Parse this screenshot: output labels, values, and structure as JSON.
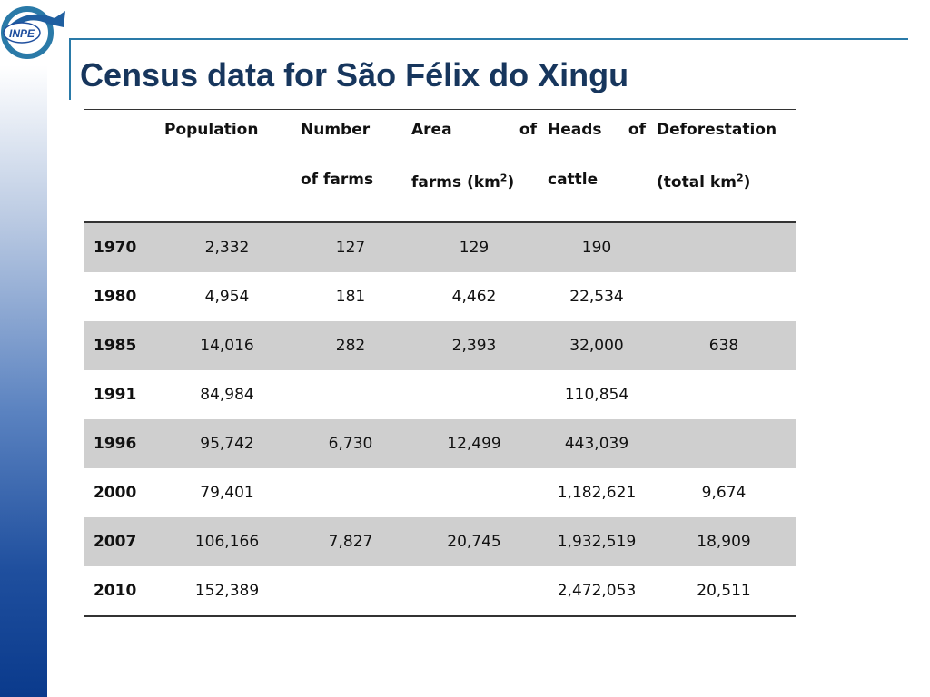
{
  "title": "Census data for São Félix do Xingu",
  "logo": {
    "text": "INPE"
  },
  "table": {
    "headers": {
      "population": "Population",
      "farms_1": "Number",
      "farms_2": "of farms",
      "area_1a": "Area",
      "area_1b": "of",
      "area_2": "farms (km",
      "area_sup": "2",
      "area_close": ")",
      "cattle_1a": "Heads",
      "cattle_1b": "of",
      "cattle_2": "cattle",
      "defor_1": "Deforestation",
      "defor_2": "(total km",
      "defor_sup": "2",
      "defor_close": ")"
    },
    "rows": [
      {
        "year": "1970",
        "population": "2,332",
        "farms": "127",
        "area": "129",
        "cattle": "190",
        "deforestation": ""
      },
      {
        "year": "1980",
        "population": "4,954",
        "farms": "181",
        "area": "4,462",
        "cattle": "22,534",
        "deforestation": ""
      },
      {
        "year": "1985",
        "population": "14,016",
        "farms": "282",
        "area": "2,393",
        "cattle": "32,000",
        "deforestation": "638"
      },
      {
        "year": "1991",
        "population": "84,984",
        "farms": "",
        "area": "",
        "cattle": "110,854",
        "deforestation": ""
      },
      {
        "year": "1996",
        "population": "95,742",
        "farms": "6,730",
        "area": "12,499",
        "cattle": "443,039",
        "deforestation": ""
      },
      {
        "year": "2000",
        "population": "79,401",
        "farms": "",
        "area": "",
        "cattle": "1,182,621",
        "deforestation": "9,674"
      },
      {
        "year": "2007",
        "population": "106,166",
        "farms": "7,827",
        "area": "20,745",
        "cattle": "1,932,519",
        "deforestation": "18,909"
      },
      {
        "year": "2010",
        "population": "152,389",
        "farms": "",
        "area": "",
        "cattle": "2,472,053",
        "deforestation": "20,511"
      }
    ]
  },
  "colors": {
    "title": "#17365d",
    "rule": "#2a7aa8",
    "shade": "#cfcfcf"
  }
}
